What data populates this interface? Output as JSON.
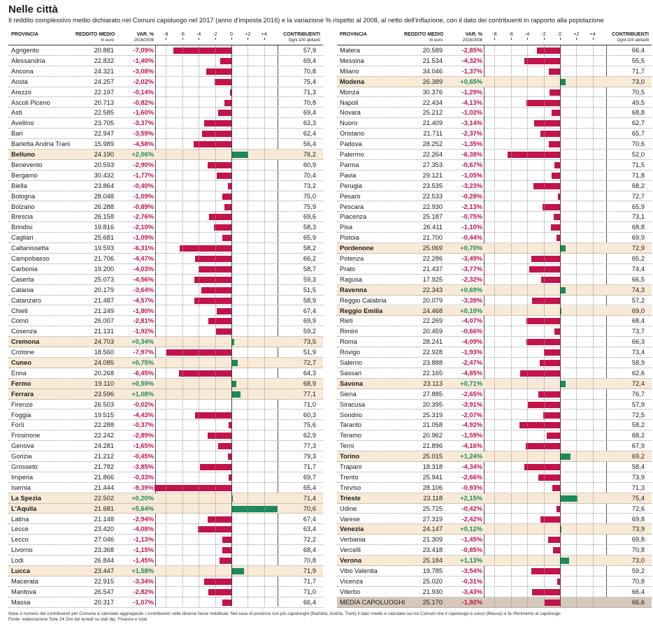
{
  "title": "Nelle città",
  "subtitle": "Il reddito complessivo medio dichiarato nei Comuni capoluogo nel 2017 (anno d'imposta 2016) e la variazione % rispetto al 2008, al netto dell'inflazione, con il dato dei contribuenti in rapporto alla popolazione",
  "headers": {
    "provincia": "PROVINCIA",
    "reddito": "REDDITO MEDIO",
    "reddito_sub": "In euro",
    "var": "VAR. %",
    "var_sub": "2016/2008",
    "contribuenti": "CONTRIBUENTI",
    "contribuenti_sub": "Ogni 100 abitanti"
  },
  "axis_ticks": [
    "-8",
    "-6",
    "-4",
    "-2",
    "0",
    "+2",
    "+4"
  ],
  "note": "Nota: il numero dei contribuenti per Comune è calcolato aggregando i contribuenti nelle diverse fasce reddituali. Nel caso di province con più capoluoghi (Barletta, Andria, Trani) il dato medio è calcolato sui tre Comuni che il capoluogo è unico (Massa) si fa riferimento al capoluogo",
  "source": "Fonte: elaborazione Sole 24 Ore del lunedì su dati dip. Finanze e Istat",
  "colors": {
    "negative": "#c2134a",
    "positive": "#1a8a5e",
    "highlight": "#f8ead6",
    "average": "#d6c9bb"
  },
  "chart_data": {
    "type": "bar",
    "xlim": [
      -10,
      6
    ],
    "left": [
      {
        "name": "Agrigento",
        "income": "20.881",
        "var": -7.09,
        "var_label": "-7,09%",
        "contrib": "57,9"
      },
      {
        "name": "Alessandria",
        "income": "22.832",
        "var": -1.4,
        "var_label": "-1,40%",
        "contrib": "69,4"
      },
      {
        "name": "Ancona",
        "income": "24.321",
        "var": -3.08,
        "var_label": "-3,08%",
        "contrib": "70,8"
      },
      {
        "name": "Aosta",
        "income": "24.257",
        "var": -2.02,
        "var_label": "-2,02%",
        "contrib": "75,4"
      },
      {
        "name": "Arezzo",
        "income": "22.197",
        "var": -0.14,
        "var_label": "-0,14%",
        "contrib": "71,3"
      },
      {
        "name": "Ascoli Piceno",
        "income": "20.713",
        "var": -0.82,
        "var_label": "-0,82%",
        "contrib": "70,8"
      },
      {
        "name": "Asti",
        "income": "22.585",
        "var": -1.6,
        "var_label": "-1,60%",
        "contrib": "69,4"
      },
      {
        "name": "Avellino",
        "income": "23.705",
        "var": -3.37,
        "var_label": "-3,37%",
        "contrib": "63,3"
      },
      {
        "name": "Bari",
        "income": "22.947",
        "var": -3.59,
        "var_label": "-3,59%",
        "contrib": "62,4"
      },
      {
        "name": "Barletta Andria Trani",
        "income": "15.989",
        "var": -4.58,
        "var_label": "-4,58%",
        "contrib": "56,4"
      },
      {
        "name": "Belluno",
        "income": "24.190",
        "var": 2.06,
        "var_label": "+2,06%",
        "contrib": "76,2",
        "hl": true
      },
      {
        "name": "Benevento",
        "income": "20.593",
        "var": -2.9,
        "var_label": "-2,90%",
        "contrib": "60,9"
      },
      {
        "name": "Bergamo",
        "income": "30.432",
        "var": -1.77,
        "var_label": "-1,77%",
        "contrib": "70,4"
      },
      {
        "name": "Biella",
        "income": "23.864",
        "var": -0.4,
        "var_label": "-0,40%",
        "contrib": "73,2"
      },
      {
        "name": "Bologna",
        "income": "28.048",
        "var": -1.09,
        "var_label": "-1,09%",
        "contrib": "75,0"
      },
      {
        "name": "Bolzano",
        "income": "26.288",
        "var": -0.89,
        "var_label": "-0,89%",
        "contrib": "75,9"
      },
      {
        "name": "Brescia",
        "income": "26.158",
        "var": -2.76,
        "var_label": "-2,76%",
        "contrib": "69,6"
      },
      {
        "name": "Brindisi",
        "income": "19.816",
        "var": -2.1,
        "var_label": "-2,10%",
        "contrib": "58,3"
      },
      {
        "name": "Cagliari",
        "income": "25.681",
        "var": -1.09,
        "var_label": "-1,09%",
        "contrib": "65,9"
      },
      {
        "name": "Caltanissetta",
        "income": "19.593",
        "var": -6.31,
        "var_label": "-6,31%",
        "contrib": "58,2"
      },
      {
        "name": "Campobasso",
        "income": "21.706",
        "var": -4.47,
        "var_label": "-4,47%",
        "contrib": "66,2"
      },
      {
        "name": "Carbonia",
        "income": "19.200",
        "var": -4.03,
        "var_label": "-4,03%",
        "contrib": "58,7"
      },
      {
        "name": "Caserta",
        "income": "25.073",
        "var": -4.56,
        "var_label": "-4,56%",
        "contrib": "59,3"
      },
      {
        "name": "Catania",
        "income": "20.179",
        "var": -3.64,
        "var_label": "-3,64%",
        "contrib": "51,5"
      },
      {
        "name": "Catanzaro",
        "income": "21.487",
        "var": -4.57,
        "var_label": "-4,57%",
        "contrib": "58,9"
      },
      {
        "name": "Chieti",
        "income": "21.249",
        "var": -1.8,
        "var_label": "-1,80%",
        "contrib": "67,4"
      },
      {
        "name": "Como",
        "income": "26.007",
        "var": -2.81,
        "var_label": "-2,81%",
        "contrib": "69,9"
      },
      {
        "name": "Cosenza",
        "income": "21.131",
        "var": -1.92,
        "var_label": "-1,92%",
        "contrib": "59,2"
      },
      {
        "name": "Cremona",
        "income": "24.703",
        "var": 0.34,
        "var_label": "+0,34%",
        "contrib": "73,5",
        "hl": true
      },
      {
        "name": "Crotone",
        "income": "18.560",
        "var": -7.97,
        "var_label": "-7,97%",
        "contrib": "51,9"
      },
      {
        "name": "Cuneo",
        "income": "24.085",
        "var": 0.75,
        "var_label": "+0,75%",
        "contrib": "72,7",
        "hl": true
      },
      {
        "name": "Enna",
        "income": "20.268",
        "var": -6.45,
        "var_label": "-6,45%",
        "contrib": "64,3"
      },
      {
        "name": "Fermo",
        "income": "19.110",
        "var": 0.59,
        "var_label": "+0,59%",
        "contrib": "68,9",
        "hl": true
      },
      {
        "name": "Ferrara",
        "income": "23.596",
        "var": 1.08,
        "var_label": "+1,08%",
        "contrib": "77,1",
        "hl": true
      },
      {
        "name": "Firenze",
        "income": "26.503",
        "var": -0.02,
        "var_label": "-0,02%",
        "contrib": "71,0"
      },
      {
        "name": "Foggia",
        "income": "19.515",
        "var": -4.43,
        "var_label": "-4,43%",
        "contrib": "60,3"
      },
      {
        "name": "Forlì",
        "income": "22.288",
        "var": -0.37,
        "var_label": "-0,37%",
        "contrib": "75,6"
      },
      {
        "name": "Frosinone",
        "income": "22.242",
        "var": -2.89,
        "var_label": "-2,89%",
        "contrib": "62,9"
      },
      {
        "name": "Genova",
        "income": "24.281",
        "var": -1.65,
        "var_label": "-1,65%",
        "contrib": "77,3"
      },
      {
        "name": "Gorizia",
        "income": "21.212",
        "var": -0.45,
        "var_label": "-0,45%",
        "contrib": "79,3"
      },
      {
        "name": "Grosseto",
        "income": "21.782",
        "var": -3.85,
        "var_label": "-3,85%",
        "contrib": "71,7"
      },
      {
        "name": "Imperia",
        "income": "21.866",
        "var": -0.33,
        "var_label": "-0,33%",
        "contrib": "69,7"
      },
      {
        "name": "Isernia",
        "income": "21.444",
        "var": -9.39,
        "var_label": "-9,39%",
        "contrib": "65,4"
      },
      {
        "name": "La Spezia",
        "income": "22.502",
        "var": 0.2,
        "var_label": "+0,20%",
        "contrib": "71,4",
        "hl": true
      },
      {
        "name": "L'Aquila",
        "income": "21.681",
        "var": 5.64,
        "var_label": "+5,64%",
        "contrib": "70,6",
        "hl": true
      },
      {
        "name": "Latina",
        "income": "21.148",
        "var": -2.94,
        "var_label": "-2,94%",
        "contrib": "67,4"
      },
      {
        "name": "Lecce",
        "income": "23.420",
        "var": -4.08,
        "var_label": "-4,08%",
        "contrib": "63,4"
      },
      {
        "name": "Lecco",
        "income": "27.046",
        "var": -1.13,
        "var_label": "-1,13%",
        "contrib": "72,2"
      },
      {
        "name": "Livorno",
        "income": "23.368",
        "var": -1.15,
        "var_label": "-1,15%",
        "contrib": "68,4"
      },
      {
        "name": "Lodi",
        "income": "26.844",
        "var": -1.45,
        "var_label": "-1,45%",
        "contrib": "70,8"
      },
      {
        "name": "Lucca",
        "income": "23.447",
        "var": 1.58,
        "var_label": "+1,58%",
        "contrib": "71,9",
        "hl": true
      },
      {
        "name": "Macerata",
        "income": "22.915",
        "var": -3.34,
        "var_label": "-3,34%",
        "contrib": "71,7"
      },
      {
        "name": "Mantova",
        "income": "26.547",
        "var": -2.82,
        "var_label": "-2,82%",
        "contrib": "71,0"
      },
      {
        "name": "Massa",
        "income": "20.317",
        "var": -1.07,
        "var_label": "-1,07%",
        "contrib": "66,4"
      }
    ],
    "right": [
      {
        "name": "Matera",
        "income": "20.589",
        "var": -2.85,
        "var_label": "-2,85%",
        "contrib": "66,4"
      },
      {
        "name": "Messina",
        "income": "21.534",
        "var": -4.32,
        "var_label": "-4,32%",
        "contrib": "55,5"
      },
      {
        "name": "Milano",
        "income": "34.046",
        "var": -1.37,
        "var_label": "-1,37%",
        "contrib": "71,7"
      },
      {
        "name": "Modena",
        "income": "26.389",
        "var": 0.65,
        "var_label": "+0,65%",
        "contrib": "73,0",
        "hl": true
      },
      {
        "name": "Monza",
        "income": "30.376",
        "var": -1.29,
        "var_label": "-1,29%",
        "contrib": "70,5"
      },
      {
        "name": "Napoli",
        "income": "22.434",
        "var": -4.13,
        "var_label": "-4,13%",
        "contrib": "49,5"
      },
      {
        "name": "Novara",
        "income": "25.212",
        "var": -1.02,
        "var_label": "-1,02%",
        "contrib": "68,8"
      },
      {
        "name": "Nuoro",
        "income": "21.409",
        "var": -3.14,
        "var_label": "-3,14%",
        "contrib": "62,7"
      },
      {
        "name": "Oristano",
        "income": "21.711",
        "var": -2.37,
        "var_label": "-2,37%",
        "contrib": "65,7"
      },
      {
        "name": "Padova",
        "income": "28.252",
        "var": -1.35,
        "var_label": "-1,35%",
        "contrib": "70,6"
      },
      {
        "name": "Palermo",
        "income": "22.264",
        "var": -6.38,
        "var_label": "-6,38%",
        "contrib": "52,0"
      },
      {
        "name": "Parma",
        "income": "27.353",
        "var": -0.67,
        "var_label": "-0,67%",
        "contrib": "71,5"
      },
      {
        "name": "Pavia",
        "income": "29.121",
        "var": -1.05,
        "var_label": "-1,05%",
        "contrib": "71,8"
      },
      {
        "name": "Perugia",
        "income": "23.535",
        "var": -3.23,
        "var_label": "-3,23%",
        "contrib": "68,2"
      },
      {
        "name": "Pesaro",
        "income": "22.533",
        "var": -0.28,
        "var_label": "-0,28%",
        "contrib": "72,7"
      },
      {
        "name": "Pescara",
        "income": "22.930",
        "var": -2.13,
        "var_label": "-2,13%",
        "contrib": "65,9"
      },
      {
        "name": "Piacenza",
        "income": "25.187",
        "var": -0.75,
        "var_label": "-0,75%",
        "contrib": "73,1"
      },
      {
        "name": "Pisa",
        "income": "26.411",
        "var": -1.1,
        "var_label": "-1,10%",
        "contrib": "68,8"
      },
      {
        "name": "Pistoia",
        "income": "21.700",
        "var": -0.44,
        "var_label": "-0,44%",
        "contrib": "69,9"
      },
      {
        "name": "Pordenone",
        "income": "25.069",
        "var": 0.7,
        "var_label": "+0,70%",
        "contrib": "72,9",
        "hl": true
      },
      {
        "name": "Potenza",
        "income": "22.286",
        "var": -3.49,
        "var_label": "-3,49%",
        "contrib": "65,2"
      },
      {
        "name": "Prato",
        "income": "21.437",
        "var": -3.77,
        "var_label": "-3,77%",
        "contrib": "74,4"
      },
      {
        "name": "Ragusa",
        "income": "17.925",
        "var": -2.32,
        "var_label": "-2,32%",
        "contrib": "66,5"
      },
      {
        "name": "Ravenna",
        "income": "22.343",
        "var": 0.69,
        "var_label": "+0,69%",
        "contrib": "74,3",
        "hl": true
      },
      {
        "name": "Reggio Calabria",
        "income": "20.079",
        "var": -3.39,
        "var_label": "-3,39%",
        "contrib": "57,2"
      },
      {
        "name": "Reggio Emilia",
        "income": "24.468",
        "var": 0.1,
        "var_label": "+0,10%",
        "contrib": "69,0",
        "hl": true
      },
      {
        "name": "Rieti",
        "income": "22.269",
        "var": -4.07,
        "var_label": "-4,07%",
        "contrib": "68,4"
      },
      {
        "name": "Rimini",
        "income": "20.459",
        "var": -0.66,
        "var_label": "-0,66%",
        "contrib": "73,7"
      },
      {
        "name": "Roma",
        "income": "28.241",
        "var": -4.09,
        "var_label": "-4,09%",
        "contrib": "66,3"
      },
      {
        "name": "Rovigo",
        "income": "22.928",
        "var": -1.93,
        "var_label": "-1,93%",
        "contrib": "73,4"
      },
      {
        "name": "Salerno",
        "income": "23.888",
        "var": -2.47,
        "var_label": "-2,47%",
        "contrib": "58,9"
      },
      {
        "name": "Sassari",
        "income": "22.165",
        "var": -4.85,
        "var_label": "-4,85%",
        "contrib": "62,6"
      },
      {
        "name": "Savona",
        "income": "23.113",
        "var": 0.71,
        "var_label": "+0,71%",
        "contrib": "72,4",
        "hl": true
      },
      {
        "name": "Siena",
        "income": "27.885",
        "var": -2.65,
        "var_label": "-2,65%",
        "contrib": "76,7"
      },
      {
        "name": "Siracusa",
        "income": "20.395",
        "var": -3.91,
        "var_label": "-3,91%",
        "contrib": "57,9"
      },
      {
        "name": "Sondrio",
        "income": "25.319",
        "var": -2.07,
        "var_label": "-2,07%",
        "contrib": "72,5"
      },
      {
        "name": "Taranto",
        "income": "21.058",
        "var": -4.92,
        "var_label": "-4,92%",
        "contrib": "58,2"
      },
      {
        "name": "Teramo",
        "income": "20.962",
        "var": -1.59,
        "var_label": "-1,59%",
        "contrib": "68,2"
      },
      {
        "name": "Terni",
        "income": "21.896",
        "var": -4.16,
        "var_label": "-4,16%",
        "contrib": "67,9"
      },
      {
        "name": "Torino",
        "income": "25.015",
        "var": 1.24,
        "var_label": "+1,24%",
        "contrib": "69,2",
        "hl": true
      },
      {
        "name": "Trapani",
        "income": "18.318",
        "var": -4.34,
        "var_label": "-4,34%",
        "contrib": "58,4"
      },
      {
        "name": "Trento",
        "income": "25.941",
        "var": -2.66,
        "var_label": "-2,66%",
        "contrib": "73,9"
      },
      {
        "name": "Treviso",
        "income": "28.106",
        "var": -0.93,
        "var_label": "-0,93%",
        "contrib": "71,3"
      },
      {
        "name": "Trieste",
        "income": "23.118",
        "var": 2.15,
        "var_label": "+2,15%",
        "contrib": "75,4",
        "hl": true
      },
      {
        "name": "Udine",
        "income": "25.725",
        "var": -0.42,
        "var_label": "-0,42%",
        "contrib": "72,6"
      },
      {
        "name": "Varese",
        "income": "27.319",
        "var": -2.42,
        "var_label": "-2,42%",
        "contrib": "69,8"
      },
      {
        "name": "Venezia",
        "income": "24.147",
        "var": 0.12,
        "var_label": "+0,12%",
        "contrib": "73,9",
        "hl": true
      },
      {
        "name": "Verbania",
        "income": "21.309",
        "var": -1.45,
        "var_label": "-1,45%",
        "contrib": "69,8"
      },
      {
        "name": "Vercelli",
        "income": "23.418",
        "var": -0.85,
        "var_label": "-0,85%",
        "contrib": "70,8"
      },
      {
        "name": "Verona",
        "income": "25.184",
        "var": 1.13,
        "var_label": "+1,13%",
        "contrib": "73,0",
        "hl": true
      },
      {
        "name": "Vibo Valentia",
        "income": "19.785",
        "var": -3.54,
        "var_label": "-3,54%",
        "contrib": "59,2"
      },
      {
        "name": "Vicenza",
        "income": "25.020",
        "var": -0.31,
        "var_label": "-0,31%",
        "contrib": "70,8"
      },
      {
        "name": "Viterbo",
        "income": "21.930",
        "var": -3.43,
        "var_label": "-3,43%",
        "contrib": "66,4"
      },
      {
        "name": "MEDIA CAPOLUOGHI",
        "income": "25.170",
        "var": -1.92,
        "var_label": "-1,92%",
        "contrib": "66,6",
        "avg": true
      }
    ]
  }
}
